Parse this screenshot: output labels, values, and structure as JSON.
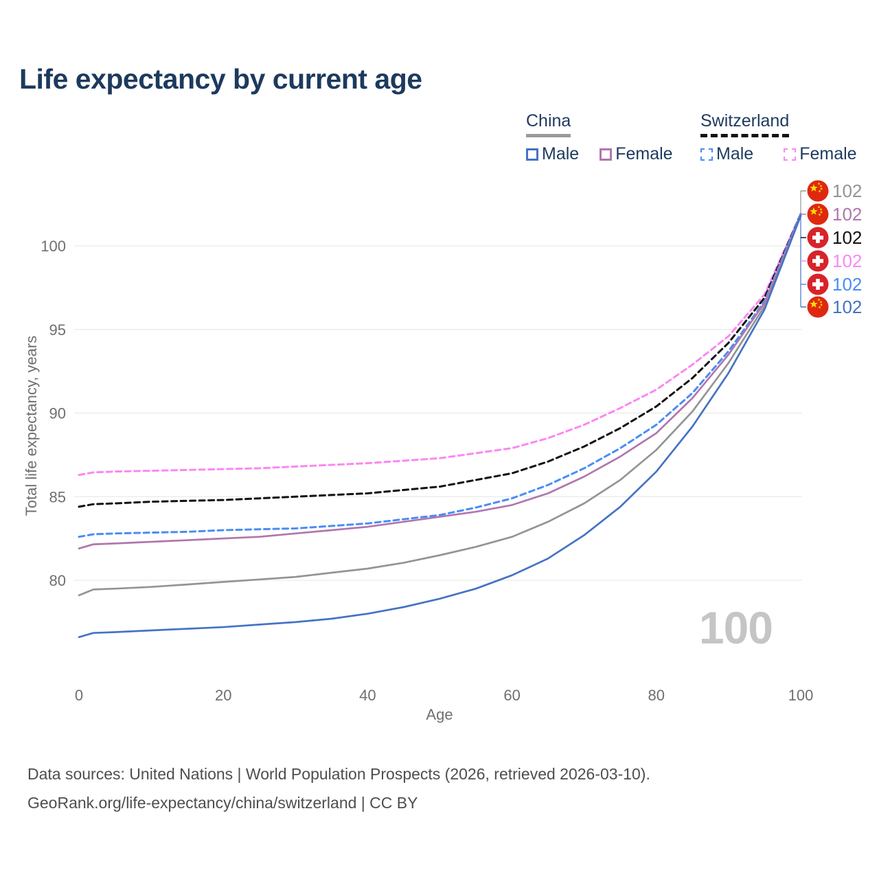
{
  "title": "Life expectancy by current age",
  "legend": {
    "china": {
      "label": "China",
      "male_label": "Male",
      "female_label": "Female"
    },
    "switzerland": {
      "label": "Switzerland",
      "male_label": "Male",
      "female_label": "Female"
    }
  },
  "footer": {
    "line1": "Data sources: United Nations | World Population Prospects (2026, retrieved 2026-03-10).",
    "line2": "GeoRank.org/life-expectancy/china/switzerland | CC BY"
  },
  "watermark": "100",
  "colors": {
    "title": "#1d3a5e",
    "axis_text": "#6f6f6f",
    "grid": "#e9e9e9",
    "watermark": "#c5c5c5",
    "footer": "#4e4e4e",
    "china_flag_red": "#de2910",
    "china_flag_yellow": "#ffde00",
    "swiss_flag_red": "#d8232a",
    "swiss_flag_white": "#ffffff"
  },
  "chart_data": {
    "type": "line",
    "title": "Life expectancy by current age",
    "xlabel": "Age",
    "ylabel": "Total life expectancy, years",
    "xlim": [
      0,
      100
    ],
    "ylim": [
      76,
      102.5
    ],
    "xticks": [
      0,
      20,
      40,
      60,
      80,
      100
    ],
    "yticks": [
      80,
      85,
      90,
      95,
      100
    ],
    "grid": true,
    "legend_position": "top-right",
    "x": [
      0,
      2,
      5,
      10,
      15,
      20,
      25,
      30,
      35,
      40,
      45,
      50,
      55,
      60,
      65,
      70,
      75,
      80,
      85,
      90,
      95,
      100
    ],
    "series": [
      {
        "name": "Switzerland Female",
        "country": "switzerland",
        "sex": "female",
        "style": "dashed",
        "color": "#fa88f2",
        "values": [
          86.3,
          86.45,
          86.5,
          86.55,
          86.6,
          86.65,
          86.7,
          86.8,
          86.9,
          87.0,
          87.15,
          87.3,
          87.6,
          87.9,
          88.5,
          89.3,
          90.3,
          91.4,
          92.9,
          94.6,
          97.1,
          101.9
        ]
      },
      {
        "name": "Switzerland",
        "country": "switzerland",
        "sex": "total",
        "style": "dashed",
        "color": "#111111",
        "values": [
          84.4,
          84.55,
          84.6,
          84.7,
          84.75,
          84.8,
          84.9,
          85.0,
          85.1,
          85.2,
          85.4,
          85.6,
          86.0,
          86.4,
          87.1,
          88.0,
          89.1,
          90.4,
          92.1,
          94.2,
          96.9,
          101.9
        ]
      },
      {
        "name": "Switzerland Male",
        "country": "switzerland",
        "sex": "male",
        "style": "dashed",
        "color": "#4a8cf5",
        "values": [
          82.6,
          82.75,
          82.8,
          82.85,
          82.9,
          83.0,
          83.05,
          83.1,
          83.25,
          83.4,
          83.65,
          83.9,
          84.35,
          84.9,
          85.7,
          86.7,
          87.9,
          89.3,
          91.2,
          93.7,
          96.7,
          101.9
        ]
      },
      {
        "name": "China",
        "country": "china",
        "sex": "total",
        "style": "solid",
        "color": "#949494",
        "values": [
          79.1,
          79.45,
          79.5,
          79.6,
          79.75,
          79.9,
          80.05,
          80.2,
          80.45,
          80.7,
          81.05,
          81.5,
          82.0,
          82.6,
          83.5,
          84.6,
          86.0,
          87.8,
          90.1,
          93.0,
          96.4,
          101.8
        ]
      },
      {
        "name": "China Female",
        "country": "china",
        "sex": "female",
        "style": "solid",
        "color": "#b076ae",
        "values": [
          81.9,
          82.15,
          82.2,
          82.3,
          82.4,
          82.5,
          82.6,
          82.8,
          83.0,
          83.2,
          83.5,
          83.8,
          84.1,
          84.5,
          85.2,
          86.2,
          87.4,
          88.8,
          90.9,
          93.5,
          96.6,
          101.8
        ]
      },
      {
        "name": "China Male",
        "country": "china",
        "sex": "male",
        "style": "solid",
        "color": "#4573c4",
        "values": [
          76.6,
          76.85,
          76.9,
          77.0,
          77.1,
          77.2,
          77.35,
          77.5,
          77.7,
          78.0,
          78.4,
          78.9,
          79.5,
          80.3,
          81.3,
          82.7,
          84.4,
          86.5,
          89.2,
          92.4,
          96.2,
          101.8
        ]
      }
    ],
    "end_labels": [
      {
        "series": "China",
        "value": "102",
        "flag": "china",
        "color": "#949494"
      },
      {
        "series": "China Female",
        "value": "102",
        "flag": "china",
        "color": "#b076ae"
      },
      {
        "series": "Switzerland",
        "value": "102",
        "flag": "switzerland",
        "color": "#111111"
      },
      {
        "series": "Switzerland Female",
        "value": "102",
        "flag": "switzerland",
        "color": "#fa88f2"
      },
      {
        "series": "Switzerland Male",
        "value": "102",
        "flag": "switzerland",
        "color": "#4a8cf5"
      },
      {
        "series": "China Male",
        "value": "102",
        "flag": "china",
        "color": "#4573c4"
      }
    ]
  }
}
